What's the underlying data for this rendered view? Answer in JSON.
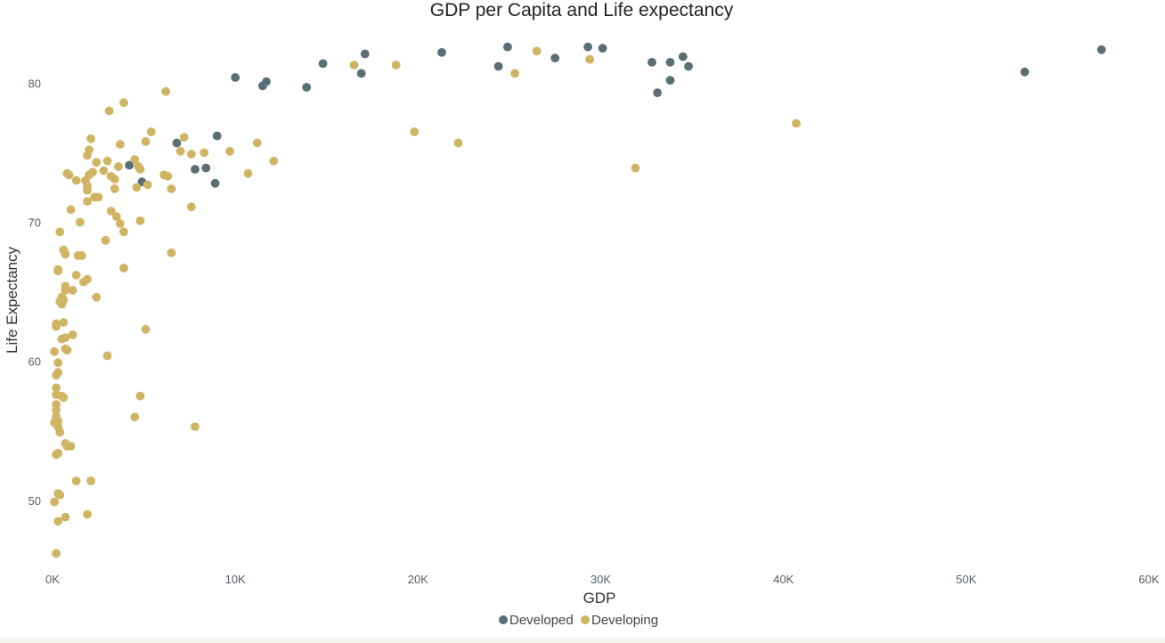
{
  "chart_data": {
    "type": "scatter",
    "title": "GDP per Capita and Life expectancy",
    "xlabel": "GDP",
    "ylabel": "Life Expectancy",
    "xlim": [
      0,
      60000
    ],
    "ylim": [
      45,
      84.5
    ],
    "x_ticks": [
      {
        "value": 0,
        "label": "0K"
      },
      {
        "value": 10000,
        "label": "10K"
      },
      {
        "value": 20000,
        "label": "20K"
      },
      {
        "value": 30000,
        "label": "30K"
      },
      {
        "value": 40000,
        "label": "40K"
      },
      {
        "value": 50000,
        "label": "50K"
      },
      {
        "value": 60000,
        "label": "60K"
      }
    ],
    "y_ticks": [
      {
        "value": 50,
        "label": "50"
      },
      {
        "value": 60,
        "label": "60"
      },
      {
        "value": 70,
        "label": "70"
      },
      {
        "value": 80,
        "label": "80"
      }
    ],
    "grid": false,
    "legend_position": "bottom-center",
    "series": [
      {
        "name": "Developed",
        "color": "#596e75",
        "points": [
          [
            10000,
            80.4
          ],
          [
            11500,
            79.8
          ],
          [
            11700,
            80.1
          ],
          [
            13900,
            79.7
          ],
          [
            14800,
            81.4
          ],
          [
            16900,
            80.7
          ],
          [
            17100,
            82.1
          ],
          [
            21300,
            82.2
          ],
          [
            24400,
            81.2
          ],
          [
            24900,
            82.6
          ],
          [
            27500,
            81.8
          ],
          [
            29300,
            82.6
          ],
          [
            30100,
            82.5
          ],
          [
            32800,
            81.5
          ],
          [
            33100,
            79.3
          ],
          [
            33800,
            80.2
          ],
          [
            33800,
            81.5
          ],
          [
            34500,
            81.9
          ],
          [
            34800,
            81.2
          ],
          [
            53200,
            80.8
          ],
          [
            57400,
            82.4
          ],
          [
            4200,
            74.1
          ],
          [
            4900,
            72.9
          ],
          [
            6800,
            75.7
          ],
          [
            7800,
            73.8
          ],
          [
            8400,
            73.9
          ],
          [
            9000,
            76.2
          ],
          [
            8900,
            72.8
          ]
        ]
      },
      {
        "name": "Developing",
        "color": "#cfb464",
        "points": [
          [
            16500,
            81.3
          ],
          [
            18800,
            81.3
          ],
          [
            25300,
            80.7
          ],
          [
            26500,
            82.3
          ],
          [
            29400,
            81.7
          ],
          [
            19800,
            76.5
          ],
          [
            22200,
            75.7
          ],
          [
            31900,
            73.9
          ],
          [
            40700,
            77.1
          ],
          [
            6200,
            79.4
          ],
          [
            3900,
            78.6
          ],
          [
            3100,
            78.0
          ],
          [
            2100,
            76.0
          ],
          [
            5400,
            76.5
          ],
          [
            7200,
            76.1
          ],
          [
            5100,
            75.8
          ],
          [
            3700,
            75.6
          ],
          [
            1900,
            74.8
          ],
          [
            2000,
            75.2
          ],
          [
            2400,
            74.3
          ],
          [
            3000,
            74.4
          ],
          [
            3600,
            74.0
          ],
          [
            4500,
            74.5
          ],
          [
            4700,
            74.0
          ],
          [
            4800,
            73.8
          ],
          [
            2800,
            73.7
          ],
          [
            2200,
            73.6
          ],
          [
            3200,
            73.3
          ],
          [
            3400,
            73.1
          ],
          [
            2000,
            73.4
          ],
          [
            1800,
            73.0
          ],
          [
            1300,
            73.0
          ],
          [
            800,
            73.5
          ],
          [
            900,
            73.4
          ],
          [
            4600,
            72.5
          ],
          [
            5200,
            72.7
          ],
          [
            6100,
            73.4
          ],
          [
            6300,
            73.3
          ],
          [
            7000,
            75.1
          ],
          [
            7600,
            74.9
          ],
          [
            8300,
            75.0
          ],
          [
            9700,
            75.1
          ],
          [
            11200,
            75.7
          ],
          [
            12100,
            74.4
          ],
          [
            10700,
            73.5
          ],
          [
            6500,
            72.4
          ],
          [
            1900,
            72.3
          ],
          [
            1900,
            72.6
          ],
          [
            3400,
            72.4
          ],
          [
            2300,
            71.8
          ],
          [
            2500,
            71.8
          ],
          [
            1900,
            71.5
          ],
          [
            1000,
            70.9
          ],
          [
            3200,
            70.8
          ],
          [
            3500,
            70.4
          ],
          [
            3700,
            69.9
          ],
          [
            1500,
            70.0
          ],
          [
            4800,
            70.1
          ],
          [
            7600,
            71.1
          ],
          [
            3900,
            69.3
          ],
          [
            400,
            69.3
          ],
          [
            2900,
            68.7
          ],
          [
            600,
            68.0
          ],
          [
            700,
            67.7
          ],
          [
            1400,
            67.6
          ],
          [
            1600,
            67.6
          ],
          [
            6500,
            67.8
          ],
          [
            3900,
            66.7
          ],
          [
            300,
            66.6
          ],
          [
            300,
            66.5
          ],
          [
            1300,
            66.2
          ],
          [
            1900,
            65.9
          ],
          [
            1700,
            65.7
          ],
          [
            700,
            65.4
          ],
          [
            1100,
            65.1
          ],
          [
            700,
            65.1
          ],
          [
            500,
            64.6
          ],
          [
            600,
            64.4
          ],
          [
            400,
            64.3
          ],
          [
            500,
            64.1
          ],
          [
            2400,
            64.6
          ],
          [
            600,
            62.8
          ],
          [
            200,
            62.7
          ],
          [
            200,
            62.5
          ],
          [
            5100,
            62.3
          ],
          [
            1100,
            61.9
          ],
          [
            700,
            61.7
          ],
          [
            500,
            61.6
          ],
          [
            700,
            60.9
          ],
          [
            800,
            60.8
          ],
          [
            100,
            60.7
          ],
          [
            3000,
            60.4
          ],
          [
            300,
            59.9
          ],
          [
            300,
            59.2
          ],
          [
            200,
            59.0
          ],
          [
            200,
            58.1
          ],
          [
            200,
            57.6
          ],
          [
            500,
            57.5
          ],
          [
            600,
            57.4
          ],
          [
            4800,
            57.5
          ],
          [
            200,
            56.9
          ],
          [
            200,
            56.5
          ],
          [
            200,
            56.0
          ],
          [
            4500,
            56.0
          ],
          [
            300,
            55.7
          ],
          [
            100,
            55.6
          ],
          [
            300,
            55.3
          ],
          [
            7800,
            55.3
          ],
          [
            400,
            54.9
          ],
          [
            700,
            54.1
          ],
          [
            800,
            53.9
          ],
          [
            1000,
            53.9
          ],
          [
            300,
            53.4
          ],
          [
            200,
            53.3
          ],
          [
            1300,
            51.4
          ],
          [
            2100,
            51.4
          ],
          [
            300,
            50.5
          ],
          [
            400,
            50.4
          ],
          [
            100,
            49.9
          ],
          [
            1900,
            49.0
          ],
          [
            700,
            48.8
          ],
          [
            300,
            48.5
          ],
          [
            200,
            46.2
          ]
        ]
      }
    ]
  }
}
